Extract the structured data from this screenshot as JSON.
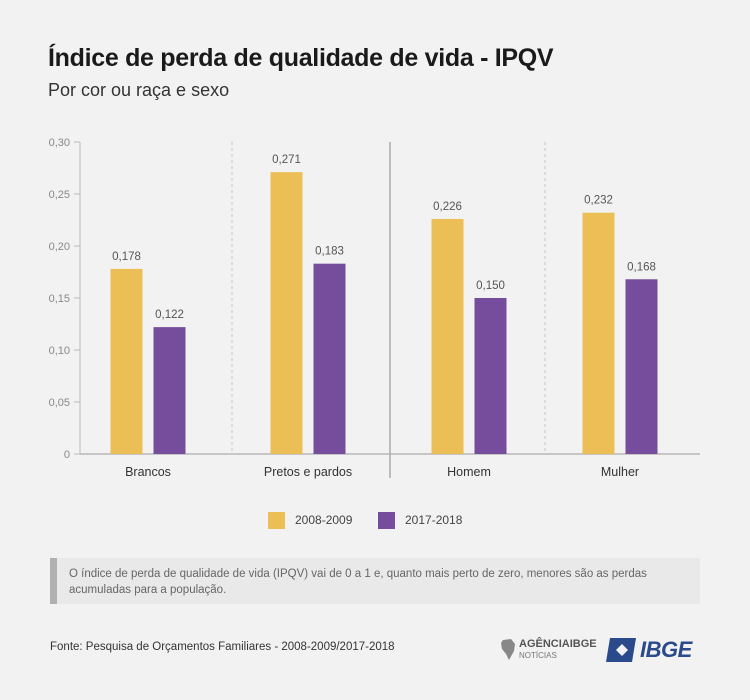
{
  "title": "Índice de perda de qualidade de vida - IPQV",
  "subtitle": "Por cor ou raça e sexo",
  "colors": {
    "series1": "#ecbf56",
    "series2": "#764c9c"
  },
  "chart_data": {
    "type": "bar",
    "categories": [
      "Brancos",
      "Pretos e pardos",
      "Homem",
      "Mulher"
    ],
    "series": [
      {
        "name": "2008-2009",
        "values": [
          0.178,
          0.271,
          0.226,
          0.232
        ],
        "labels": [
          "0,178",
          "0,271",
          "0,226",
          "0,232"
        ]
      },
      {
        "name": "2017-2018",
        "values": [
          0.122,
          0.183,
          0.15,
          0.168
        ],
        "labels": [
          "0,122",
          "0,183",
          "0,150",
          "0,168"
        ]
      }
    ],
    "ylim": [
      0,
      0.3
    ],
    "yticks": [
      "0",
      "0,05",
      "0,10",
      "0,15",
      "0,20",
      "0,25",
      "0,30"
    ],
    "groups": [
      [
        "Brancos",
        "Pretos e pardos"
      ],
      [
        "Homem",
        "Mulher"
      ]
    ],
    "legend_position": "bottom"
  },
  "note": "O índice de perda de qualidade de vida (IPQV) vai de 0 a 1 e, quanto mais perto de zero, menores são as perdas acumuladas para a população.",
  "source": "Fonte: Pesquisa de Orçamentos Familiares - 2008-2009/2017-2018",
  "logos": {
    "agencia": "AGÊNCIAIBGE",
    "agencia_sub": "NOTÍCIAS",
    "ibge": "IBGE"
  }
}
